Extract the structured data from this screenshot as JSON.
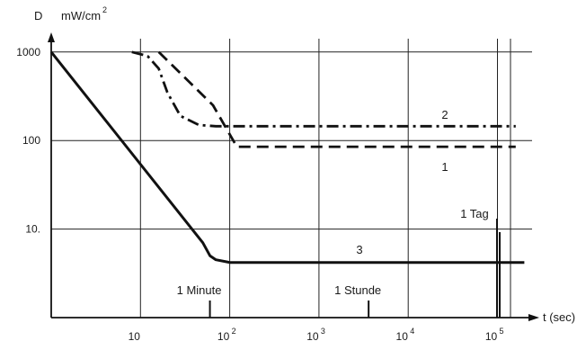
{
  "chart_data": {
    "type": "line",
    "y_axis": {
      "symbol": "D",
      "unit_text": "mW/cm",
      "unit_power": "2",
      "scale": "log",
      "range": [
        1,
        1000
      ],
      "tick_values": [
        1000,
        100,
        10
      ],
      "tick_labels": [
        "1000",
        "100",
        "10."
      ]
    },
    "x_axis": {
      "label": "t (sec)",
      "scale": "log",
      "range": [
        1,
        200000
      ],
      "tick_values": [
        10,
        100,
        1000,
        10000,
        100000
      ],
      "tick_labels": [
        {
          "base": "10",
          "exp": ""
        },
        {
          "base": "10",
          "exp": "2"
        },
        {
          "base": "10",
          "exp": "3"
        },
        {
          "base": "10",
          "exp": "4"
        },
        {
          "base": "10",
          "exp": "5"
        }
      ]
    },
    "grid": true,
    "series": [
      {
        "name": "1",
        "style": "dashed",
        "points": [
          [
            16,
            1000
          ],
          [
            65,
            250
          ],
          [
            120,
            85
          ],
          [
            160000,
            85
          ]
        ]
      },
      {
        "name": "2",
        "style": "dash-dot",
        "points": [
          [
            8,
            1000
          ],
          [
            12,
            900
          ],
          [
            16,
            650
          ],
          [
            20,
            350
          ],
          [
            28,
            190
          ],
          [
            45,
            150
          ],
          [
            70,
            145
          ],
          [
            160000,
            145
          ]
        ]
      },
      {
        "name": "3",
        "style": "solid",
        "points": [
          [
            1,
            1000
          ],
          [
            50,
            7
          ],
          [
            60,
            5
          ],
          [
            70,
            4.5
          ],
          [
            100,
            4.2
          ],
          [
            200000,
            4.2
          ]
        ]
      }
    ],
    "markers": [
      {
        "label": "1 Minute",
        "x": 60
      },
      {
        "label": "1 Stunde",
        "x": 3600
      },
      {
        "label": "1 Tag",
        "x": 86400
      }
    ]
  }
}
